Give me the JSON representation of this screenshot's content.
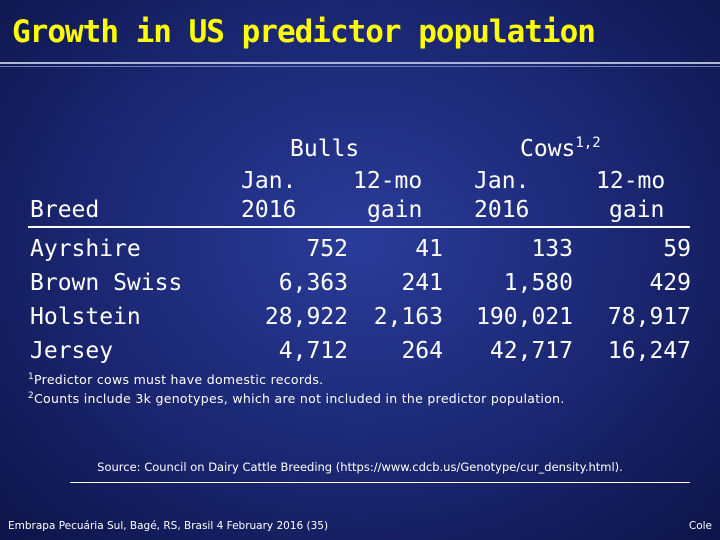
{
  "title": "Growth in US predictor population",
  "headers": {
    "bulls": "Bulls",
    "cows": "Cows",
    "cows_sup": "1,2",
    "jan": "Jan.",
    "year": "2016",
    "mo": "12-mo",
    "gain": "gain",
    "breed": "Breed"
  },
  "rows": [
    {
      "breed": "Ayrshire",
      "bulls_jan": "752",
      "bulls_gain": "41",
      "cows_jan": "133",
      "cows_gain": "59"
    },
    {
      "breed": "Brown Swiss",
      "bulls_jan": "6,363",
      "bulls_gain": "241",
      "cows_jan": "1,580",
      "cows_gain": "429"
    },
    {
      "breed": "Holstein",
      "bulls_jan": "28,922",
      "bulls_gain": "2,163",
      "cows_jan": "190,021",
      "cows_gain": "78,917"
    },
    {
      "breed": "Jersey",
      "bulls_jan": "4,712",
      "bulls_gain": "264",
      "cows_jan": "42,717",
      "cows_gain": "16,247"
    }
  ],
  "footnotes": [
    {
      "sup": "1",
      "text": "Predictor cows must have domestic records."
    },
    {
      "sup": "2",
      "text": "Counts include 3k genotypes, which are not included in the predictor population."
    }
  ],
  "source": "Source: Council on Dairy Cattle Breeding (https://www.cdcb.us/Genotype/cur_density.html).",
  "bottom_left": "Embrapa Pecuária Sul, Bagé, RS, Brasil 4 February 2016 (35)",
  "bottom_right": "Cole"
}
